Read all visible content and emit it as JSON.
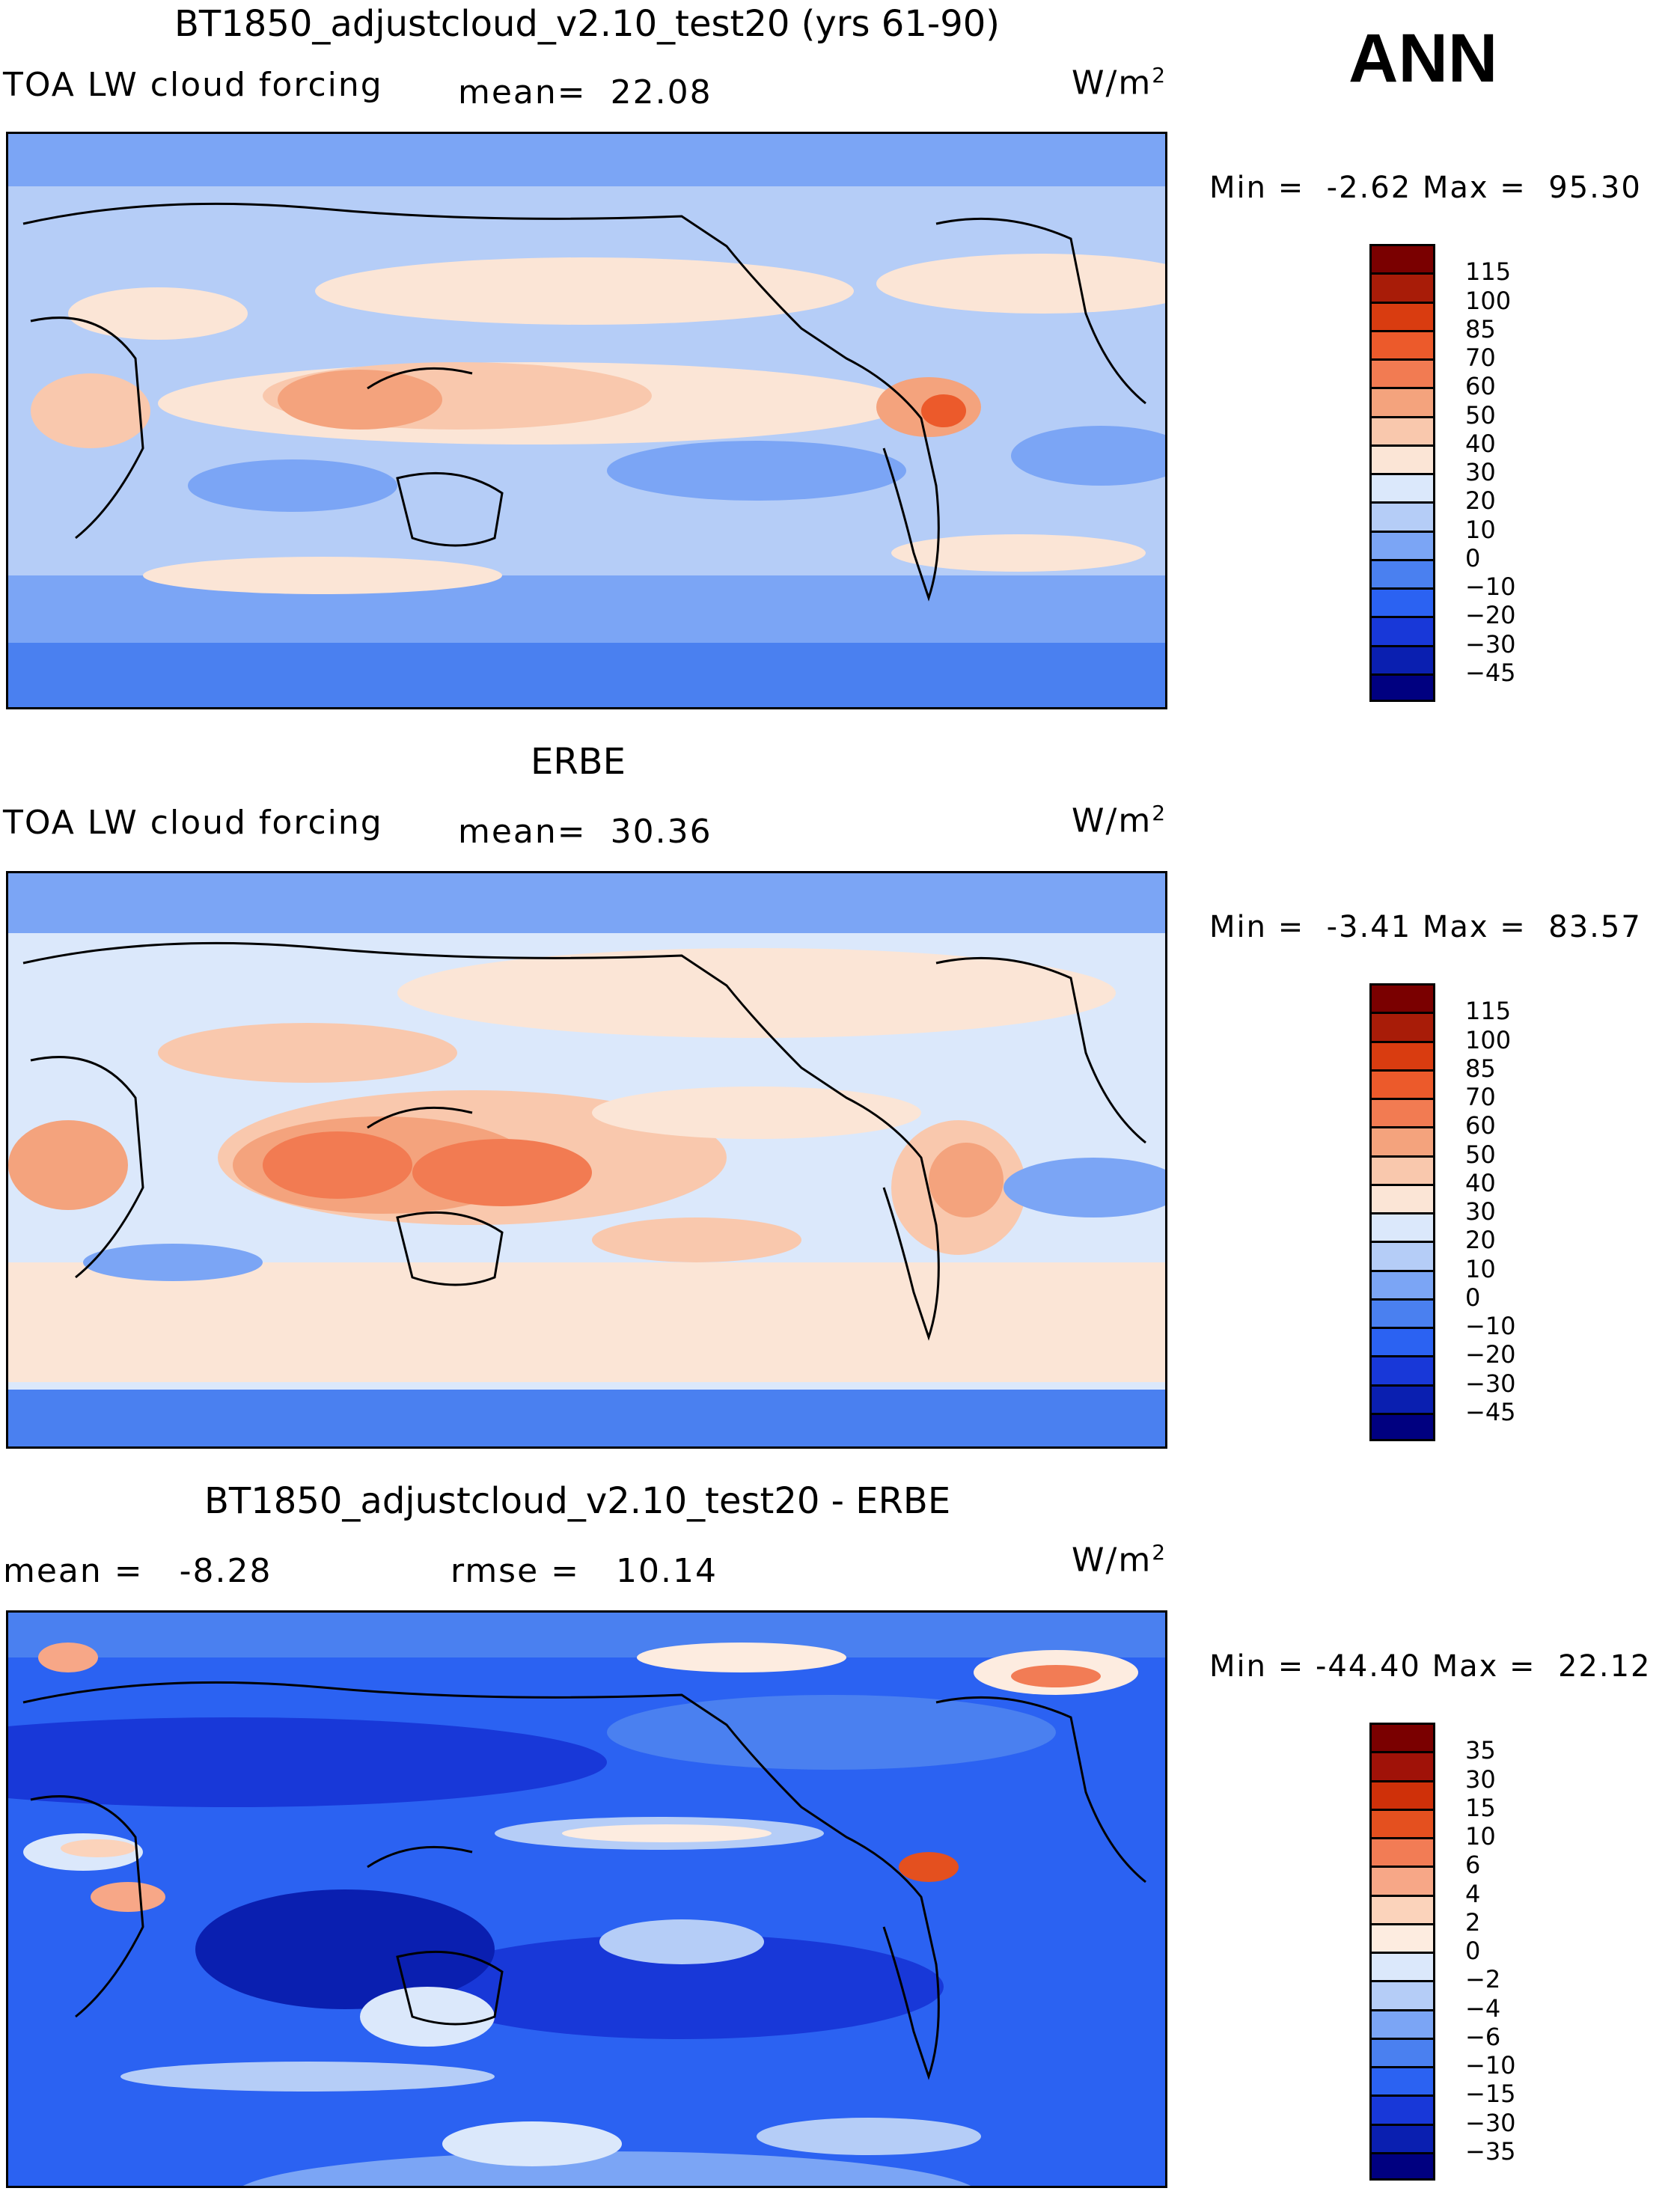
{
  "season": "ANN",
  "colors": {
    "abs_scale": [
      "#000080",
      "#0a1fb0",
      "#1838d8",
      "#2b62f2",
      "#4a80f0",
      "#7ba5f5",
      "#b5cdf7",
      "#dbe8fb",
      "#fbe5d6",
      "#f9c8ad",
      "#f4a37d",
      "#f27b52",
      "#ec5a2b",
      "#d93c10",
      "#a81c08",
      "#7a0000"
    ],
    "diff_scale": [
      "#000080",
      "#0a1fb0",
      "#1838d8",
      "#2b62f2",
      "#4a80f0",
      "#7ba5f5",
      "#b5cdf7",
      "#dbe8fb",
      "#fdece0",
      "#fbd3bb",
      "#f7a787",
      "#f27c55",
      "#e4501f",
      "#cf3009",
      "#a01208",
      "#7a0000"
    ],
    "coast": "#000000"
  },
  "chart_data": [
    {
      "type": "heatmap",
      "title": "BT1850_adjustcloud_v2.10_test20 (yrs 61-90)",
      "field": "TOA LW cloud forcing",
      "units_base": "W/m",
      "units_exp": "2",
      "mean_label": "mean=",
      "mean_value": "22.08",
      "min_label": "Min =",
      "min_value": "-2.62",
      "max_label": "Max =",
      "max_value": "95.30",
      "colorbar_levels": [
        "115",
        "100",
        "85",
        "70",
        "60",
        "50",
        "40",
        "30",
        "20",
        "10",
        "0",
        "-10",
        "-20",
        "-30",
        "-45"
      ]
    },
    {
      "type": "heatmap",
      "title": "ERBE",
      "field": "TOA LW cloud forcing",
      "units_base": "W/m",
      "units_exp": "2",
      "mean_label": "mean=",
      "mean_value": "30.36",
      "min_label": "Min =",
      "min_value": "-3.41",
      "max_label": "Max =",
      "max_value": "83.57",
      "colorbar_levels": [
        "115",
        "100",
        "85",
        "70",
        "60",
        "50",
        "40",
        "30",
        "20",
        "10",
        "0",
        "-10",
        "-20",
        "-30",
        "-45"
      ]
    },
    {
      "type": "heatmap",
      "title": "BT1850_adjustcloud_v2.10_test20 - ERBE",
      "units_base": "W/m",
      "units_exp": "2",
      "mean_label": "mean =",
      "mean_value": "-8.28",
      "rmse_label": "rmse =",
      "rmse_value": "10.14",
      "min_label": "Min =",
      "min_value": "-44.40",
      "max_label": "Max =",
      "max_value": "22.12",
      "colorbar_levels": [
        "35",
        "30",
        "15",
        "10",
        "6",
        "4",
        "2",
        "0",
        "-2",
        "-4",
        "-6",
        "-10",
        "-15",
        "-30",
        "-35"
      ]
    }
  ]
}
